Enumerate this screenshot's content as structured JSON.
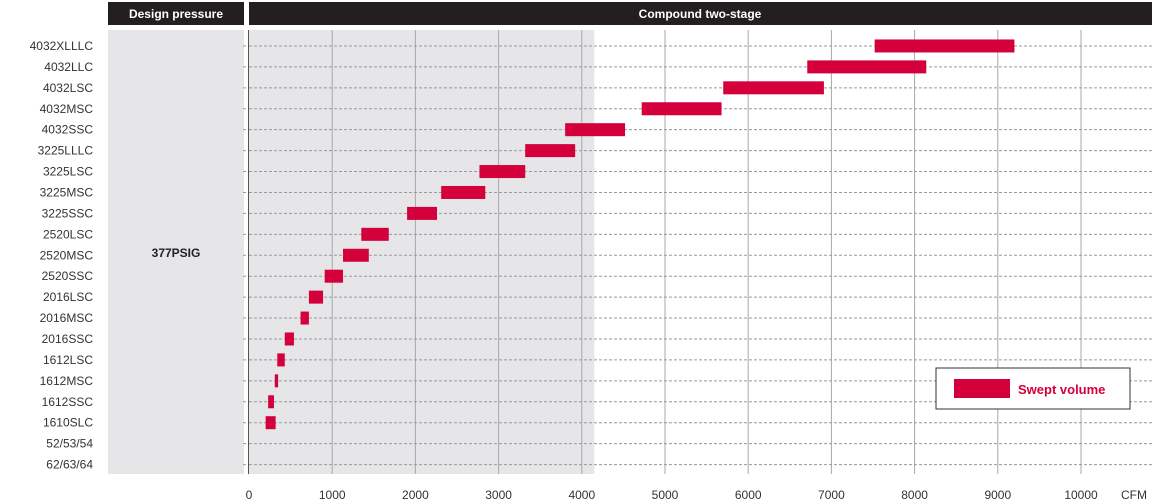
{
  "chart_data": {
    "type": "bar",
    "orientation": "horizontal-range",
    "left_header": "Design pressure",
    "main_header": "Compound two-stage",
    "band_label": "377PSIG",
    "x_unit": "CFM",
    "xlim": [
      0,
      10800
    ],
    "x_ticks": [
      0,
      1000,
      2000,
      3000,
      4000,
      5000,
      6000,
      7000,
      8000,
      9000,
      10000
    ],
    "shaded_region": [
      0,
      4150
    ],
    "grid": true,
    "legend": {
      "label": "Swept volume",
      "position": "bottom-right"
    },
    "colors": {
      "bar": "#d4003c",
      "header": "#231f20",
      "shade": "#e6e6e8",
      "band": "#e6e6e8"
    },
    "categories": [
      "4032XLLLC",
      "4032LLC",
      "4032LSC",
      "4032MSC",
      "4032SSC",
      "3225LLLC",
      "3225LSC",
      "3225MSC",
      "3225SSC",
      "2520LSC",
      "2520MSC",
      "2520SSC",
      "2016LSC",
      "2016MSC",
      "2016SSC",
      "1612LSC",
      "1612MSC",
      "1612SSC",
      "1610SLC",
      "52/53/54",
      "62/63/64"
    ],
    "series": [
      {
        "name": "Swept volume",
        "ranges": [
          [
            7520,
            9200
          ],
          [
            6710,
            8140
          ],
          [
            5700,
            6910
          ],
          [
            4720,
            5680
          ],
          [
            3800,
            4520
          ],
          [
            3320,
            3920
          ],
          [
            2770,
            3320
          ],
          [
            2310,
            2840
          ],
          [
            1900,
            2260
          ],
          [
            1350,
            1680
          ],
          [
            1130,
            1440
          ],
          [
            910,
            1130
          ],
          [
            720,
            890
          ],
          [
            620,
            720
          ],
          [
            430,
            540
          ],
          [
            340,
            430
          ],
          [
            310,
            350
          ],
          [
            230,
            300
          ],
          [
            200,
            320
          ],
          null,
          null
        ]
      }
    ]
  }
}
